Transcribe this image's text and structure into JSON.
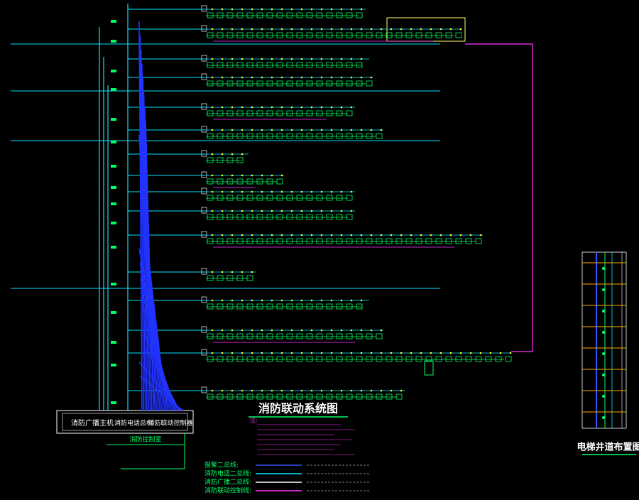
{
  "title": "消防联动系统图",
  "side_title": "电梯井道布置图",
  "control_room": {
    "name": "消防控制室",
    "hosts": [
      "消防广播主机",
      "消防电话总机",
      "消防联动控制器"
    ]
  },
  "notes": {
    "heading": "注:"
  },
  "legend": [
    {
      "label": "报警二总线:",
      "color": "#3355ff"
    },
    {
      "label": "消防电话二总线:",
      "color": "#00e5ff"
    },
    {
      "label": "消防广播二总线:",
      "color": "#ffffff"
    },
    {
      "label": "消防联动控制线:",
      "color": "#ff33ff"
    }
  ]
}
